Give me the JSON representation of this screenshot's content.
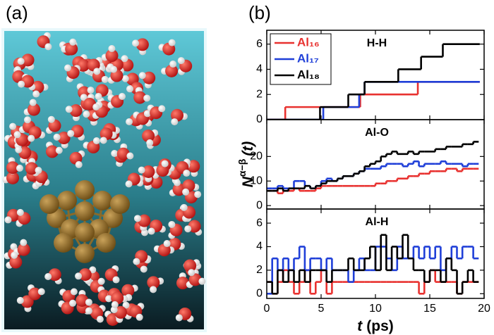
{
  "panel_labels": [
    "(a)",
    "(b)"
  ],
  "chart_data": [
    {
      "type": "step",
      "title": "H-H",
      "legend": "upper left",
      "xlim": [
        0,
        20
      ],
      "xticks": [
        0,
        5,
        10,
        15,
        20
      ],
      "ylim": [
        0,
        7.1
      ],
      "yticks": [
        0,
        2,
        4,
        6
      ],
      "series": [
        {
          "name": "Al₁₆",
          "color": "#e8312f",
          "x": [
            0,
            1.7,
            8.6,
            13.9,
            19.6
          ],
          "values": [
            0,
            1,
            2,
            3,
            3
          ]
        },
        {
          "name": "Al₁₇",
          "color": "#1f3fd8",
          "x": [
            0,
            5.2,
            8.5,
            9.0,
            19.6
          ],
          "values": [
            0,
            1,
            2,
            3,
            3
          ]
        },
        {
          "name": "Al₁₈",
          "color": "#000000",
          "x": [
            0,
            4.9,
            7.5,
            9.0,
            12.1,
            14.2,
            16.2,
            19.6
          ],
          "values": [
            0,
            1,
            2,
            3,
            4,
            5,
            6,
            6
          ]
        }
      ]
    },
    {
      "type": "step",
      "title": "Al-O",
      "y_label": "N",
      "y_label_sup": "α−β",
      "y_label_end": "(t)",
      "xlim": [
        0,
        20
      ],
      "xticks": [
        0,
        5,
        10,
        15,
        20
      ],
      "ylim": [
        -1.4,
        35
      ],
      "yticks": [
        0,
        10,
        20
      ],
      "x": [
        0,
        0.5,
        1,
        1.5,
        2,
        2.5,
        3,
        3.5,
        4,
        4.5,
        5,
        5.5,
        6,
        6.5,
        7,
        7.5,
        8,
        8.5,
        9,
        9.5,
        10,
        10.5,
        11,
        11.5,
        12,
        12.5,
        13,
        13.5,
        14,
        14.5,
        15,
        15.5,
        16,
        16.5,
        17,
        17.5,
        18,
        18.5,
        19,
        19.5
      ],
      "series": [
        {
          "color": "#e8312f",
          "values": [
            6,
            6,
            5,
            6,
            6,
            7,
            6,
            6,
            6,
            7,
            8,
            8,
            8,
            8,
            8,
            8,
            8,
            8,
            8,
            8,
            9,
            9,
            10,
            10,
            11,
            11,
            12,
            12,
            13,
            13,
            14,
            14,
            14,
            15,
            15,
            14,
            15,
            15,
            15,
            15
          ]
        },
        {
          "color": "#1f3fd8",
          "values": [
            7,
            7,
            8,
            7,
            7,
            10,
            10,
            8,
            7,
            8,
            10,
            11,
            10,
            11,
            12,
            12,
            13,
            14,
            15,
            15,
            15,
            16,
            17,
            17,
            17,
            16,
            17,
            18,
            16,
            17,
            17,
            17,
            18,
            17,
            17,
            17,
            16,
            17,
            17,
            17
          ]
        },
        {
          "color": "#000000",
          "values": [
            6,
            6,
            7,
            6,
            7,
            7,
            7,
            8,
            7,
            8,
            9,
            10,
            10,
            11,
            12,
            12,
            13,
            14,
            16,
            17,
            18,
            20,
            21,
            22,
            21,
            21,
            22,
            21,
            22,
            22,
            22,
            23,
            23,
            24,
            24,
            24,
            25,
            25,
            26,
            26
          ]
        }
      ]
    },
    {
      "type": "step",
      "title": "Al-H",
      "x_label": "t",
      "x_label_unit": "(ps)",
      "xlim": [
        0,
        20
      ],
      "xticks": [
        0,
        5,
        10,
        15,
        20
      ],
      "ylim": [
        -0.4,
        7.2
      ],
      "yticks": [
        0,
        2,
        4,
        6
      ],
      "x": [
        0,
        0.5,
        1,
        1.5,
        2,
        2.5,
        3,
        3.5,
        4,
        4.5,
        5,
        5.5,
        6,
        6.5,
        7,
        7.5,
        8,
        8.5,
        9,
        9.5,
        10,
        10.5,
        11,
        11.5,
        12,
        12.5,
        13,
        13.5,
        14,
        14.5,
        15,
        15.5,
        16,
        16.5,
        17,
        17.5,
        18,
        18.5,
        19,
        19.5
      ],
      "series": [
        {
          "color": "#e8312f",
          "values": [
            1,
            0,
            1,
            2,
            1,
            0,
            1,
            2,
            0,
            1,
            2,
            0,
            1,
            1,
            1,
            1,
            1,
            1,
            1,
            1,
            1,
            1,
            1,
            1,
            1,
            1,
            1,
            1,
            0,
            1,
            2,
            1,
            1,
            1,
            1,
            0,
            1,
            1,
            1,
            1
          ]
        },
        {
          "color": "#1f3fd8",
          "values": [
            0,
            3,
            2,
            3,
            2,
            3,
            4,
            2,
            3,
            3,
            2,
            3,
            2,
            2,
            2,
            1,
            2,
            3,
            2,
            2,
            4,
            4,
            3,
            2,
            4,
            3,
            3,
            4,
            3,
            4,
            3,
            4,
            2,
            3,
            4,
            3,
            4,
            4,
            3,
            3
          ]
        },
        {
          "color": "#000000",
          "values": [
            1,
            0,
            2,
            1,
            2,
            1,
            2,
            1,
            2,
            2,
            2,
            1,
            2,
            2,
            2,
            3,
            2,
            2,
            3,
            4,
            2,
            5,
            2,
            4,
            3,
            5,
            3,
            2,
            2,
            1,
            2,
            2,
            1,
            3,
            2,
            0,
            1,
            2,
            1,
            1
          ]
        }
      ]
    }
  ]
}
